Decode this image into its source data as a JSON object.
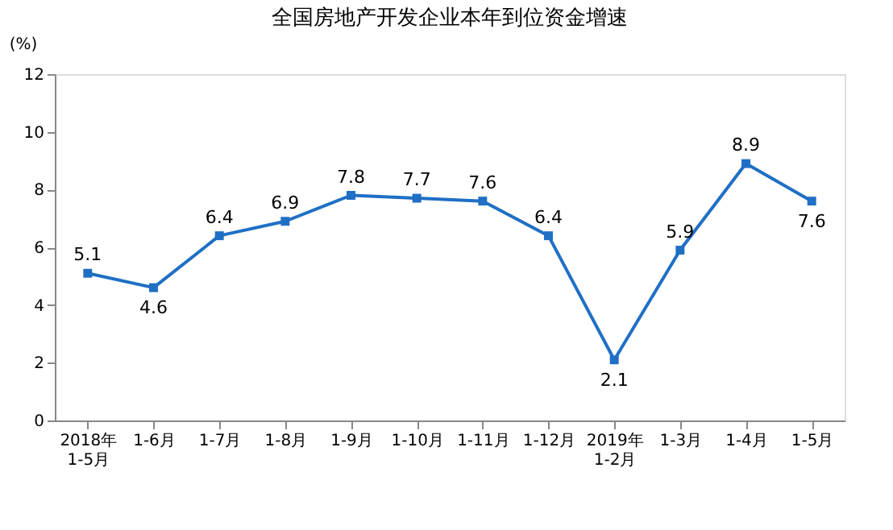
{
  "chart_data": {
    "type": "line",
    "title": "全国房地产开发企业本年到位资金增速",
    "ylabel": "(%)",
    "categories": [
      "2018年\n1-5月",
      "1-6月",
      "1-7月",
      "1-8月",
      "1-9月",
      "1-10月",
      "1-11月",
      "1-12月",
      "2019年\n1-2月",
      "1-3月",
      "1-4月",
      "1-5月"
    ],
    "series": [
      {
        "color": "#1f6fc5",
        "values": [
          5.1,
          4.6,
          6.4,
          6.9,
          7.8,
          7.7,
          7.6,
          6.4,
          2.1,
          5.9,
          8.9,
          7.6
        ]
      }
    ],
    "ylim": [
      0,
      12
    ],
    "yticks": [
      0,
      2,
      4,
      6,
      8,
      10,
      12
    ],
    "data_labels": true,
    "marker": "square",
    "grid": false
  }
}
